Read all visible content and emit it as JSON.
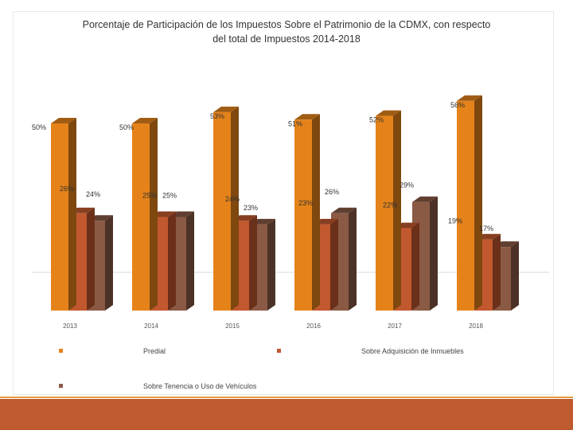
{
  "colors": {
    "predial": "#E5831A",
    "adquisicion": "#C2582E",
    "tenencia": "#8B5A45",
    "footer": "#BE5A2E",
    "footer_line": "#E59B3C"
  },
  "chart_data": {
    "type": "bar",
    "title": "Porcentaje de Participación de los Impuestos Sobre el Patrimonio de la CDMX, con respecto del total de Impuestos 2014-2018",
    "categories": [
      "2013",
      "2014",
      "2015",
      "2016",
      "2017",
      "2018"
    ],
    "series": [
      {
        "name": "Predial",
        "values": [
          50,
          50,
          53,
          51,
          52,
          56
        ],
        "labels": [
          "50%",
          "50%",
          "53%",
          "51%",
          "52%",
          "56%"
        ]
      },
      {
        "name": "Sobre Adquisición de Inmuebles",
        "values": [
          26,
          25,
          24,
          23,
          22,
          19
        ],
        "labels": [
          "26%",
          "25%",
          "24%",
          "23%",
          "22%",
          "19%"
        ]
      },
      {
        "name": "Sobre Tenencia o Uso de Vehículos",
        "values": [
          24,
          25,
          23,
          26,
          29,
          17
        ],
        "labels": [
          "24%",
          "25%",
          "23%",
          "26%",
          "29%",
          "17%"
        ]
      }
    ],
    "ylim": [
      0,
      60
    ],
    "grid": false,
    "legend_position": "bottom"
  }
}
